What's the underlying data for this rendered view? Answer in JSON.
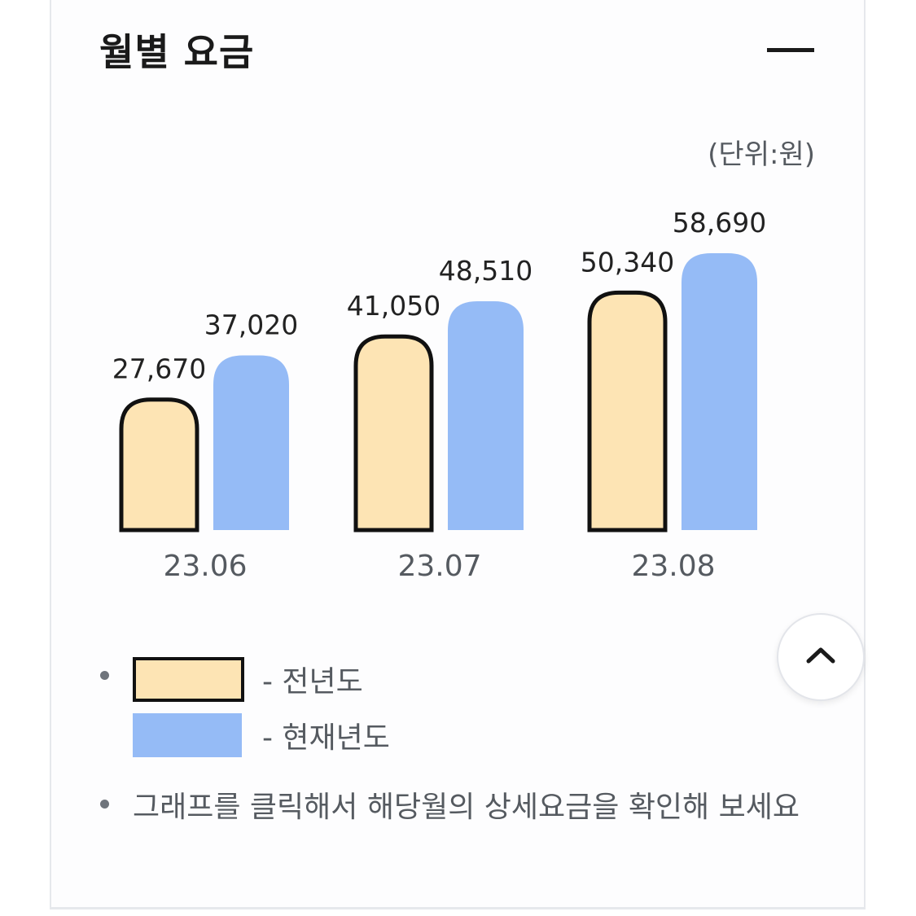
{
  "section": {
    "title": "월별 요금",
    "collapse_icon": "minus-icon",
    "unit": "(단위:원)"
  },
  "chart_data": {
    "type": "bar",
    "categories": [
      "23.06",
      "23.07",
      "23.08"
    ],
    "series": [
      {
        "name": "전년도",
        "values": [
          27670,
          41050,
          50340
        ],
        "color": "#fde4b4",
        "outline": "#111111"
      },
      {
        "name": "현재년도",
        "values": [
          37020,
          48510,
          58690
        ],
        "color": "#95bbf6"
      }
    ],
    "value_labels": [
      [
        "27,670",
        "41,050",
        "50,340"
      ],
      [
        "37,020",
        "48,510",
        "58,690"
      ]
    ],
    "ylim": [
      0,
      58690
    ],
    "ylabel": "",
    "xlabel": "",
    "grid": false
  },
  "legend": {
    "items": [
      {
        "label": "- 전년도",
        "color": "#fde4b4",
        "outline": "#111111"
      },
      {
        "label": "- 현재년도",
        "color": "#95bbf6"
      }
    ]
  },
  "note": "그래프를 클릭해서 해당월의 상세요금을 확인해 보세요",
  "scroll_top_icon": "chevron-up-icon"
}
